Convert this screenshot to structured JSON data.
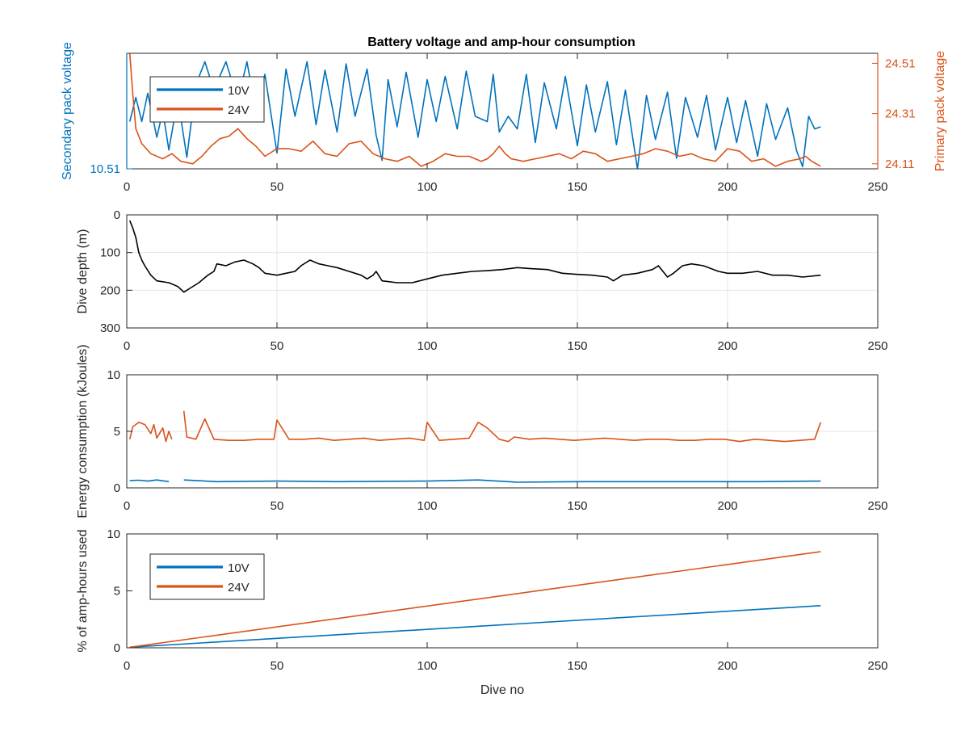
{
  "title": "Battery voltage and amp-hour consumption",
  "colors": {
    "blue": "#0072BD",
    "orange": "#D95319",
    "black": "#000000",
    "grid": "#e6e6e6",
    "axis": "#262626"
  },
  "chart_data": [
    {
      "id": "voltage",
      "type": "line",
      "title": "Battery voltage and amp-hour consumption",
      "xlabel": "",
      "ylabel_left": "Secondary pack voltage",
      "ylabel_right": "Primary pack voltage",
      "xlim": [
        0,
        250
      ],
      "xticks": [
        "0",
        "50",
        "100",
        "150",
        "200",
        "250"
      ],
      "ylim_left": [
        10.51,
        10.62
      ],
      "yticks_left": [
        {
          "value": 10.51,
          "label": "10.51"
        }
      ],
      "ylim_right": [
        24.09,
        24.55
      ],
      "yticks_right": [
        {
          "value": 24.11,
          "label": "24.11"
        },
        {
          "value": 24.31,
          "label": "24.31"
        },
        {
          "value": 24.51,
          "label": "24.51"
        }
      ],
      "grid": false,
      "legend": {
        "location": "top-left",
        "entries": [
          "10V",
          "24V"
        ]
      },
      "series": [
        {
          "name": "10V",
          "axis": "left",
          "color": "#0072BD",
          "x": [
            1,
            3,
            5,
            7,
            10,
            12,
            14,
            17,
            20,
            23,
            26,
            29,
            33,
            37,
            40,
            43,
            46,
            50,
            53,
            56,
            60,
            63,
            66,
            70,
            73,
            76,
            80,
            83,
            85,
            87,
            90,
            93,
            97,
            100,
            103,
            106,
            110,
            113,
            116,
            120,
            122,
            124,
            127,
            130,
            133,
            136,
            139,
            143,
            146,
            150,
            153,
            156,
            160,
            163,
            166,
            170,
            173,
            176,
            180,
            183,
            186,
            190,
            193,
            196,
            200,
            203,
            206,
            210,
            213,
            216,
            220,
            223,
            225,
            227,
            229,
            231
          ],
          "values": [
            10.555,
            10.578,
            10.555,
            10.582,
            10.54,
            10.565,
            10.528,
            10.577,
            10.521,
            10.59,
            10.612,
            10.585,
            10.612,
            10.575,
            10.612,
            10.565,
            10.6,
            10.525,
            10.605,
            10.56,
            10.612,
            10.552,
            10.604,
            10.545,
            10.61,
            10.56,
            10.605,
            10.542,
            10.518,
            10.595,
            10.55,
            10.602,
            10.54,
            10.595,
            10.555,
            10.598,
            10.548,
            10.603,
            10.56,
            10.555,
            10.6,
            10.545,
            10.56,
            10.548,
            10.6,
            10.535,
            10.592,
            10.548,
            10.598,
            10.532,
            10.59,
            10.545,
            10.593,
            10.533,
            10.585,
            10.51,
            10.58,
            10.538,
            10.583,
            10.52,
            10.578,
            10.54,
            10.58,
            10.528,
            10.578,
            10.535,
            10.575,
            10.522,
            10.572,
            10.538,
            10.568,
            10.527,
            10.512,
            10.56,
            10.548,
            10.55
          ]
        },
        {
          "name": "24V",
          "axis": "right",
          "color": "#D95319",
          "x": [
            1,
            2,
            3,
            5,
            8,
            12,
            15,
            18,
            22,
            25,
            28,
            31,
            34,
            37,
            40,
            43,
            46,
            50,
            54,
            58,
            62,
            66,
            70,
            74,
            78,
            82,
            86,
            90,
            94,
            98,
            102,
            106,
            110,
            114,
            118,
            120,
            122,
            124,
            126,
            128,
            132,
            136,
            140,
            144,
            148,
            152,
            156,
            160,
            164,
            168,
            172,
            176,
            180,
            184,
            188,
            192,
            196,
            200,
            204,
            208,
            212,
            216,
            220,
            224,
            226,
            228,
            231
          ],
          "values": [
            24.55,
            24.39,
            24.25,
            24.19,
            24.15,
            24.13,
            24.15,
            24.12,
            24.11,
            24.14,
            24.18,
            24.21,
            24.22,
            24.25,
            24.21,
            24.18,
            24.14,
            24.17,
            24.17,
            24.16,
            24.2,
            24.15,
            24.14,
            24.19,
            24.2,
            24.15,
            24.13,
            24.12,
            24.14,
            24.1,
            24.12,
            24.15,
            24.14,
            24.14,
            24.12,
            24.13,
            24.15,
            24.18,
            24.15,
            24.13,
            24.12,
            24.13,
            24.14,
            24.15,
            24.13,
            24.16,
            24.15,
            24.12,
            24.13,
            24.14,
            24.15,
            24.17,
            24.16,
            24.14,
            24.15,
            24.13,
            24.12,
            24.17,
            24.16,
            24.12,
            24.13,
            24.1,
            24.12,
            24.13,
            24.14,
            24.12,
            24.1
          ]
        }
      ]
    },
    {
      "id": "depth",
      "type": "line",
      "xlabel": "",
      "ylabel": "Dive depth (m)",
      "xlim": [
        0,
        250
      ],
      "xticks": [
        "0",
        "50",
        "100",
        "150",
        "200",
        "250"
      ],
      "ylim": [
        0,
        300
      ],
      "y_reversed": true,
      "yticks": [
        {
          "value": 0,
          "label": "0"
        },
        {
          "value": 100,
          "label": "100"
        },
        {
          "value": 200,
          "label": "200"
        },
        {
          "value": 300,
          "label": "300"
        }
      ],
      "grid": true,
      "series": [
        {
          "color": "#000000",
          "x": [
            1,
            2,
            3,
            4,
            5,
            6,
            8,
            10,
            14,
            17,
            19,
            21,
            24,
            27,
            29,
            30,
            33,
            36,
            39,
            42,
            44,
            46,
            50,
            53,
            56,
            58,
            61,
            64,
            67,
            70,
            74,
            78,
            80,
            82,
            83,
            85,
            90,
            95,
            100,
            105,
            110,
            115,
            120,
            125,
            130,
            135,
            140,
            145,
            150,
            155,
            160,
            162,
            165,
            170,
            175,
            177,
            180,
            182,
            185,
            188,
            192,
            197,
            200,
            205,
            210,
            215,
            220,
            225,
            231
          ],
          "values": [
            15,
            35,
            60,
            100,
            120,
            135,
            160,
            175,
            180,
            190,
            205,
            195,
            180,
            160,
            150,
            130,
            135,
            125,
            120,
            130,
            140,
            155,
            160,
            155,
            150,
            135,
            120,
            130,
            135,
            140,
            150,
            160,
            170,
            160,
            150,
            175,
            180,
            180,
            170,
            160,
            155,
            150,
            148,
            145,
            140,
            143,
            145,
            155,
            158,
            160,
            165,
            175,
            160,
            155,
            145,
            135,
            165,
            155,
            135,
            130,
            135,
            150,
            155,
            155,
            150,
            160,
            160,
            165,
            160
          ]
        }
      ]
    },
    {
      "id": "energy",
      "type": "line",
      "xlabel": "",
      "ylabel": "Energy consumption (kJoules)",
      "xlim": [
        0,
        250
      ],
      "xticks": [
        "0",
        "50",
        "100",
        "150",
        "200",
        "250"
      ],
      "ylim": [
        0,
        10
      ],
      "yticks": [
        {
          "value": 0,
          "label": "0"
        },
        {
          "value": 5,
          "label": "5"
        },
        {
          "value": 10,
          "label": "10"
        }
      ],
      "grid": true,
      "series": [
        {
          "name": "10V",
          "color": "#0072BD",
          "segments": [
            {
              "x": [
                1,
                4,
                7,
                10,
                14
              ],
              "values": [
                0.65,
                0.68,
                0.6,
                0.7,
                0.55
              ]
            },
            {
              "x": [
                19,
                30,
                50,
                70,
                100,
                117,
                130,
                150,
                170,
                190,
                210,
                231
              ],
              "values": [
                0.7,
                0.55,
                0.6,
                0.55,
                0.6,
                0.7,
                0.5,
                0.55,
                0.55,
                0.55,
                0.55,
                0.6
              ]
            }
          ]
        },
        {
          "name": "24V",
          "color": "#D95319",
          "segments": [
            {
              "x": [
                1,
                2,
                4,
                6,
                8,
                9,
                10,
                12,
                13,
                14,
                15
              ],
              "values": [
                4.3,
                5.4,
                5.8,
                5.6,
                4.8,
                5.6,
                4.4,
                5.3,
                4.1,
                5.0,
                4.3
              ]
            },
            {
              "x": [
                19,
                20,
                23,
                26,
                29,
                34,
                39,
                44,
                49,
                50,
                54,
                59,
                64,
                69,
                74,
                79,
                84,
                89,
                94,
                99,
                100,
                104,
                109,
                114,
                117,
                120,
                124,
                127,
                129,
                134,
                139,
                144,
                149,
                154,
                159,
                164,
                169,
                174,
                179,
                184,
                189,
                194,
                199,
                204,
                209,
                214,
                219,
                224,
                229,
                231
              ],
              "values": [
                6.8,
                4.5,
                4.3,
                6.1,
                4.3,
                4.2,
                4.2,
                4.3,
                4.3,
                6.0,
                4.3,
                4.3,
                4.4,
                4.2,
                4.3,
                4.4,
                4.2,
                4.3,
                4.4,
                4.2,
                5.8,
                4.2,
                4.3,
                4.4,
                5.8,
                5.3,
                4.3,
                4.1,
                4.5,
                4.3,
                4.4,
                4.3,
                4.2,
                4.3,
                4.4,
                4.3,
                4.2,
                4.3,
                4.3,
                4.2,
                4.2,
                4.3,
                4.3,
                4.1,
                4.3,
                4.2,
                4.1,
                4.2,
                4.3,
                5.8
              ]
            }
          ]
        }
      ]
    },
    {
      "id": "amphours",
      "type": "line",
      "xlabel": "Dive no",
      "ylabel": "% of amp-hours used",
      "xlim": [
        0,
        250
      ],
      "xticks": [
        "0",
        "50",
        "100",
        "150",
        "200",
        "250"
      ],
      "ylim": [
        0,
        10
      ],
      "yticks": [
        {
          "value": 0,
          "label": "0"
        },
        {
          "value": 5,
          "label": "5"
        },
        {
          "value": 10,
          "label": "10"
        }
      ],
      "grid": false,
      "legend": {
        "location": "left",
        "entries": [
          "10V",
          "24V"
        ]
      },
      "series": [
        {
          "name": "10V",
          "color": "#0072BD",
          "x": [
            1,
            231
          ],
          "values": [
            0.05,
            3.7
          ]
        },
        {
          "name": "24V",
          "color": "#D95319",
          "x": [
            1,
            231
          ],
          "values": [
            0.05,
            8.45
          ]
        }
      ]
    }
  ]
}
